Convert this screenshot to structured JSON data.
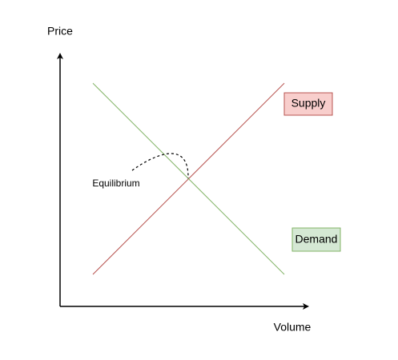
{
  "axes": {
    "y_label": "Price",
    "x_label": "Volume"
  },
  "curves": [
    {
      "label": "Supply"
    },
    {
      "label": "Demand"
    }
  ],
  "annotation": "Equilibrium"
}
